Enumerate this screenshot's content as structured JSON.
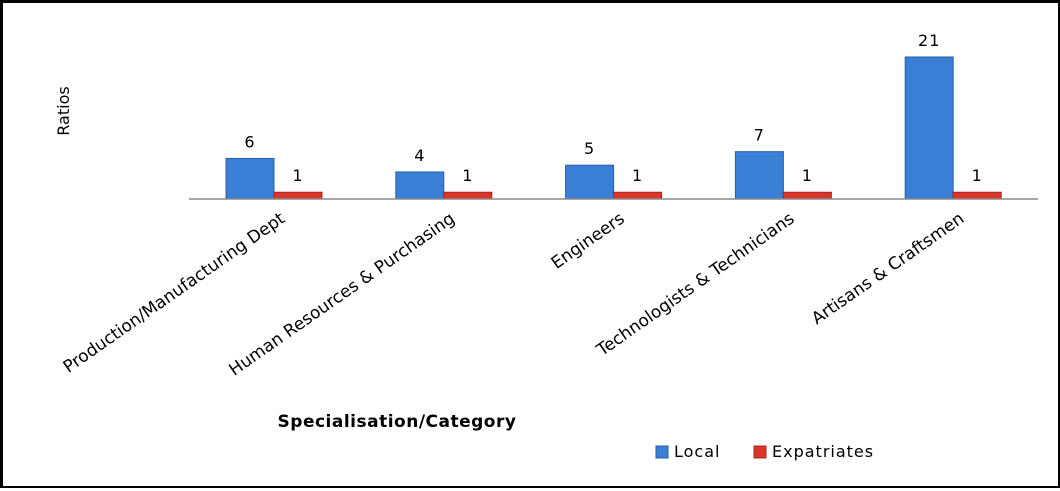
{
  "chart_data": {
    "type": "bar",
    "categories": [
      "Production/Manufacturing Dept",
      "Human Resources & Purchasing",
      "Engineers",
      "Technologists & Technicians",
      "Artisans & Craftsmen"
    ],
    "series": [
      {
        "name": "Local",
        "values": [
          6,
          4,
          5,
          7,
          21
        ],
        "color": "#3a7fd6"
      },
      {
        "name": "Expatriates",
        "values": [
          1,
          1,
          1,
          1,
          1
        ],
        "color": "#d9352b"
      }
    ],
    "xlabel": "Specialisation/Category",
    "ylabel": "Ratios",
    "ylim": [
      0,
      21
    ],
    "grid": false,
    "legend_position": "bottom-right",
    "data_labels": true
  }
}
